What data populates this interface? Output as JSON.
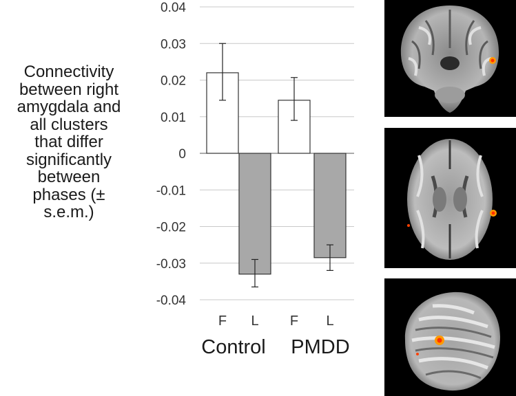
{
  "chart_data": {
    "type": "bar",
    "ylabel": "Connectivity between right amygdala and all clusters that differ significantly between phases (± s.e.m.)",
    "ylabel_lines": [
      "Connectivity",
      "between right",
      "amygdala and",
      "all clusters",
      "that differ",
      "significantly",
      "between",
      "phases (±",
      "s.e.m.)"
    ],
    "ylim": [
      -0.04,
      0.04
    ],
    "yticks": [
      0.04,
      0.03,
      0.02,
      0.01,
      0,
      -0.01,
      -0.02,
      -0.03,
      -0.04
    ],
    "ytick_labels": [
      "0.04",
      "0.03",
      "0.02",
      "0.01",
      "0",
      "-0.01",
      "-0.02",
      "-0.03",
      "-0.04"
    ],
    "grid": true,
    "groups": [
      {
        "name": "Control",
        "bars": [
          {
            "label": "F",
            "value": 0.022,
            "err_low": 0.0145,
            "err_high": 0.03,
            "color": "#ffffff"
          },
          {
            "label": "L",
            "value": -0.033,
            "err_low": -0.0365,
            "err_high": -0.029,
            "color": "#a8a8a8"
          }
        ]
      },
      {
        "name": "PMDD",
        "bars": [
          {
            "label": "F",
            "value": 0.0145,
            "err_low": 0.009,
            "err_high": 0.0207,
            "color": "#ffffff"
          },
          {
            "label": "L",
            "value": -0.0285,
            "err_low": -0.032,
            "err_high": -0.025,
            "color": "#a8a8a8"
          }
        ]
      }
    ]
  },
  "images": [
    {
      "view": "coronal"
    },
    {
      "view": "axial"
    },
    {
      "view": "sagittal"
    }
  ],
  "colors": {
    "grid": "#c8c8c8",
    "axis": "#555555",
    "bar_stroke": "#333333",
    "activation": "#ff9a00",
    "activation_core": "#ff3000"
  }
}
